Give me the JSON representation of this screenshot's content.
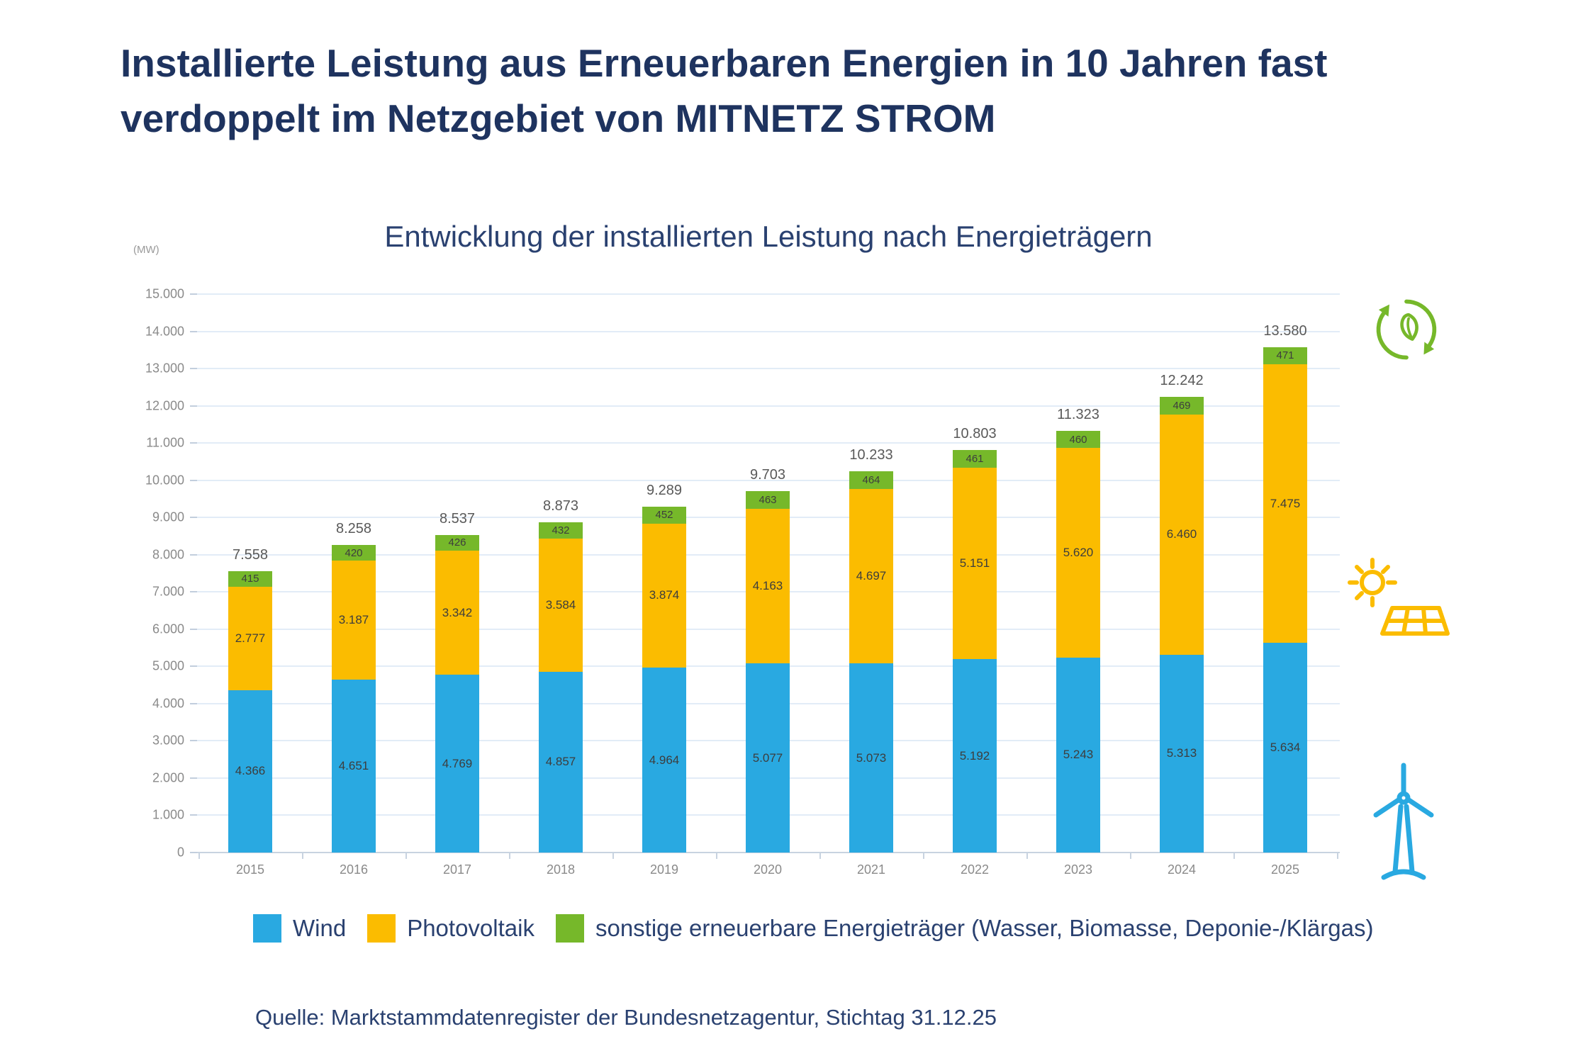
{
  "header": {
    "title_line1": "Installierte Leistung aus Erneuerbaren Energien in 10 Jahren fast",
    "title_line2": "verdoppelt im Netzgebiet von MITNETZ STROM"
  },
  "chart_data": {
    "type": "bar",
    "stacked": true,
    "title": "Entwicklung der installierten Leistung nach Energieträgern",
    "unit_label": "(MW)",
    "categories": [
      "2015",
      "2016",
      "2017",
      "2018",
      "2019",
      "2020",
      "2021",
      "2022",
      "2023",
      "2024",
      "2025"
    ],
    "series": [
      {
        "name": "Wind",
        "color": "#29A9E1",
        "values": [
          4366,
          4651,
          4769,
          4857,
          4964,
          5077,
          5073,
          5192,
          5243,
          5313,
          5634
        ]
      },
      {
        "name": "Photovoltaik",
        "color": "#FBBC00",
        "values": [
          2777,
          3187,
          3342,
          3584,
          3874,
          4163,
          4697,
          5151,
          5620,
          6460,
          7475
        ]
      },
      {
        "name": "sonstige erneuerbare Energieträger (Wasser, Biomasse, Deponie-/Klärgas)",
        "color": "#76B82A",
        "values": [
          415,
          420,
          426,
          432,
          452,
          463,
          464,
          461,
          460,
          469,
          471
        ]
      }
    ],
    "totals": [
      7558,
      8258,
      8537,
      8873,
      9289,
      9703,
      10233,
      10803,
      11323,
      12242,
      13580
    ],
    "ylim": [
      0,
      15000
    ],
    "ytick_step": 1000,
    "grid": true,
    "legend_position": "bottom",
    "number_format": "de-thousands-dot"
  },
  "source": {
    "text": "Quelle: Marktstammdatenregister der Bundesnetzagentur, Stichtag 31.12.25"
  },
  "icons": [
    {
      "name": "eco-cycle-icon",
      "color": "#76B82A"
    },
    {
      "name": "solar-panel-sun-icon",
      "color": "#FBBC00"
    },
    {
      "name": "wind-turbine-icon",
      "color": "#29A9E1"
    }
  ],
  "colors": {
    "title_text": "#1e335f",
    "axis_text": "#8a8a8a",
    "total_label": "#595959",
    "grid_line": "#e2ecf7"
  }
}
